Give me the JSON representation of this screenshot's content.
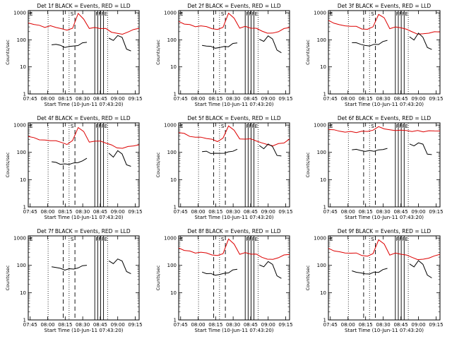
{
  "figure": {
    "colors": {
      "events": "#000000",
      "lld": "#dd0000",
      "background": "#ffffff"
    }
  },
  "common": {
    "ylabel": "Counts/sec",
    "xlabel": "Start Time (10-Jun-11 07:43:20)",
    "xtick_labels": [
      "07:45",
      "08:00",
      "08:15",
      "08:30",
      "08:45",
      "09:00",
      "09:15"
    ],
    "ytick_labels": [
      "1",
      "10",
      "100",
      "1000"
    ],
    "marker_letters": {
      "E": "E",
      "S": "S",
      "F": "F"
    }
  },
  "chart_data": [
    {
      "type": "line",
      "detector": 1,
      "title": "Det 1f BLACK = Events, RED = LLD",
      "x_range_minutes_after_0743": [
        0,
        95
      ],
      "yscale": "log",
      "ylim": [
        1,
        1200
      ],
      "lld_peak": 900,
      "lld_base": 210,
      "events_base": 60,
      "series": [
        {
          "color": "red",
          "values": [
            420,
            380,
            330,
            300,
            320,
            290,
            260,
            220,
            280,
            900,
            600,
            260,
            280,
            270,
            250,
            200,
            170,
            160,
            200,
            230,
            280
          ]
        },
        {
          "color": "black",
          "values": [
            65,
            70,
            60,
            55,
            55,
            60,
            62,
            75,
            85,
            0,
            0,
            0,
            0,
            120,
            90,
            150,
            120,
            45,
            40
          ]
        }
      ]
    },
    {
      "type": "line",
      "detector": 2,
      "title": "Det 2f BLACK = Events, RED = LLD",
      "x_range_minutes_after_0743": [
        0,
        95
      ],
      "yscale": "log",
      "ylim": [
        1,
        1200
      ],
      "series": [
        {
          "color": "red",
          "values": [
            460,
            400,
            350,
            310,
            330,
            300,
            270,
            230,
            300,
            950,
            620,
            280,
            300,
            280,
            260,
            210,
            180,
            170,
            210,
            250,
            290
          ]
        },
        {
          "color": "black",
          "values": [
            60,
            62,
            55,
            50,
            52,
            55,
            58,
            70,
            80,
            0,
            0,
            0,
            0,
            110,
            85,
            140,
            110,
            40,
            35
          ]
        }
      ]
    },
    {
      "type": "line",
      "detector": 3,
      "title": "Det 3f BLACK = Events, RED = LLD",
      "x_range_minutes_after_0743": [
        0,
        95
      ],
      "yscale": "log",
      "ylim": [
        1,
        1200
      ],
      "series": [
        {
          "color": "red",
          "values": [
            500,
            420,
            360,
            320,
            330,
            300,
            260,
            240,
            300,
            900,
            620,
            270,
            290,
            280,
            250,
            190,
            170,
            160,
            180,
            200,
            190
          ]
        },
        {
          "color": "black",
          "values": [
            75,
            80,
            68,
            60,
            62,
            65,
            70,
            85,
            95,
            0,
            0,
            0,
            0,
            130,
            100,
            170,
            130,
            50,
            45
          ]
        }
      ]
    },
    {
      "type": "line",
      "detector": 4,
      "title": "Det 4f BLACK = Events, RED = LLD",
      "x_range_minutes_after_0743": [
        0,
        95
      ],
      "yscale": "log",
      "ylim": [
        1,
        1200
      ],
      "series": [
        {
          "color": "red",
          "values": [
            380,
            340,
            300,
            270,
            280,
            260,
            230,
            200,
            260,
            850,
            560,
            240,
            260,
            250,
            230,
            180,
            150,
            140,
            160,
            180,
            180
          ]
        },
        {
          "color": "black",
          "values": [
            45,
            42,
            38,
            36,
            38,
            40,
            42,
            50,
            58,
            0,
            0,
            0,
            0,
            90,
            70,
            110,
            90,
            35,
            30
          ]
        }
      ]
    },
    {
      "type": "line",
      "detector": 5,
      "title": "Det 5f BLACK = Events, RED = LLD",
      "x_range_minutes_after_0743": [
        0,
        95
      ],
      "yscale": "log",
      "ylim": [
        1,
        1200
      ],
      "series": [
        {
          "color": "red",
          "values": [
            550,
            470,
            400,
            350,
            360,
            330,
            290,
            260,
            320,
            950,
            650,
            300,
            320,
            300,
            270,
            220,
            190,
            180,
            200,
            230,
            300
          ]
        },
        {
          "color": "black",
          "values": [
            110,
            105,
            95,
            90,
            92,
            95,
            100,
            115,
            125,
            0,
            0,
            0,
            0,
            170,
            140,
            200,
            160,
            80,
            70
          ]
        }
      ]
    },
    {
      "type": "line",
      "detector": 6,
      "title": "Det 6f BLACK = Events, RED = LLD",
      "x_range_minutes_after_0743": [
        0,
        95
      ],
      "yscale": "log",
      "ylim": [
        1,
        1200
      ],
      "series": [
        {
          "color": "red",
          "values": [
            720,
            650,
            600,
            560,
            560,
            560,
            570,
            600,
            650,
            850,
            760,
            640,
            650,
            640,
            620,
            600,
            600,
            590,
            600,
            610,
            620
          ]
        },
        {
          "color": "black",
          "values": [
            130,
            125,
            118,
            110,
            112,
            115,
            118,
            130,
            140,
            0,
            0,
            0,
            0,
            200,
            170,
            230,
            190,
            90,
            80
          ]
        }
      ]
    },
    {
      "type": "line",
      "detector": 7,
      "title": "Det 7f BLACK = Events, RED = LLD",
      "x_range_minutes_after_0743": [
        0,
        95
      ],
      "yscale": "log",
      "ylim": [
        1,
        1200
      ],
      "series": [
        {
          "color": "black",
          "values": [
            90,
            85,
            75,
            70,
            72,
            75,
            80,
            95,
            105,
            0,
            0,
            0,
            0,
            150,
            110,
            180,
            140,
            60,
            50
          ]
        }
      ]
    },
    {
      "type": "line",
      "detector": 8,
      "title": "Det 8f BLACK = Events, RED = LLD",
      "x_range_minutes_after_0743": [
        0,
        95
      ],
      "yscale": "log",
      "ylim": [
        1,
        1200
      ],
      "series": [
        {
          "color": "red",
          "values": [
            420,
            370,
            320,
            290,
            300,
            280,
            250,
            220,
            280,
            900,
            600,
            260,
            280,
            270,
            250,
            200,
            170,
            160,
            200,
            230,
            260
          ]
        },
        {
          "color": "black",
          "values": [
            55,
            52,
            48,
            45,
            46,
            50,
            55,
            65,
            75,
            0,
            0,
            0,
            0,
            110,
            85,
            140,
            110,
            40,
            35
          ]
        }
      ]
    },
    {
      "type": "line",
      "detector": 9,
      "title": "Det 9f BLACK = Events, RED = LLD",
      "x_range_minutes_after_0743": [
        0,
        95
      ],
      "yscale": "log",
      "ylim": [
        1,
        1200
      ],
      "series": [
        {
          "color": "red",
          "values": [
            400,
            350,
            310,
            280,
            290,
            270,
            240,
            210,
            270,
            880,
            580,
            250,
            270,
            260,
            240,
            190,
            170,
            160,
            190,
            220,
            250
          ]
        },
        {
          "color": "black",
          "values": [
            60,
            58,
            52,
            48,
            50,
            54,
            58,
            68,
            78,
            0,
            0,
            0,
            0,
            115,
            88,
            145,
            115,
            42,
            36
          ]
        }
      ]
    }
  ]
}
